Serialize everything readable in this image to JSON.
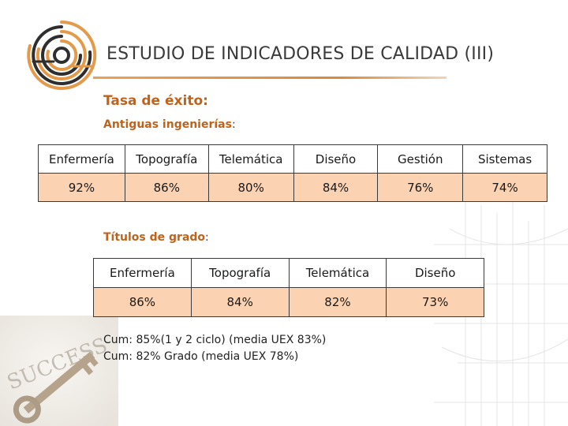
{
  "title": "ESTUDIO DE INDICADORES DE CALIDAD (III)",
  "success_rate_heading": "Tasa de éxito:",
  "old_engineering": {
    "heading": "Antiguas ingenierías",
    "colon": ":",
    "headers": [
      "Enfermería",
      "Topografía",
      "Telemática",
      "Diseño",
      "Gestión",
      "Sistemas"
    ],
    "values": [
      "92%",
      "86%",
      "80%",
      "84%",
      "76%",
      "74%"
    ]
  },
  "degree_titles": {
    "heading": "Títulos de grado",
    "colon": ":",
    "headers": [
      "Enfermería",
      "Topografía",
      "Telemática",
      "Diseño"
    ],
    "values": [
      "86%",
      "84%",
      "82%",
      "73%"
    ]
  },
  "notes": [
    "Cum: 85%(1 y 2 ciclo) (media UEX  83%)",
    "Cum: 82% Grado (media UEX 78%)"
  ],
  "background_image_text": "SUCCESS",
  "colors": {
    "accent_orange": "#c0621a",
    "table_value_fill": "#fbd2b2",
    "logo_orange": "#e39a4a",
    "logo_dark": "#2e2e2e"
  }
}
